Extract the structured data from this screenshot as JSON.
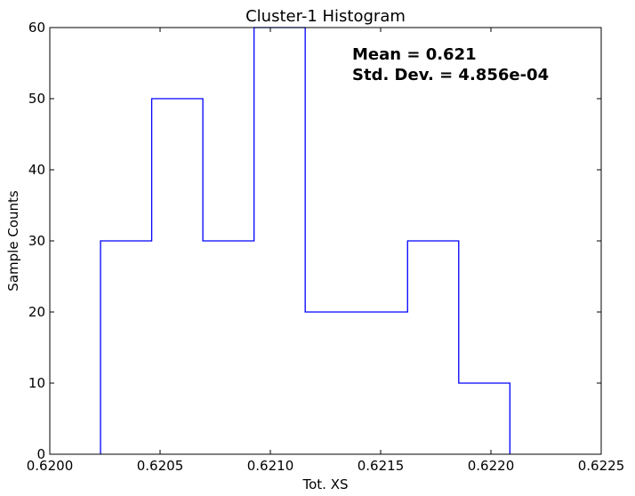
{
  "chart_data": {
    "type": "histogram",
    "title": "Cluster-1 Histogram",
    "xlabel": "Tot. XS",
    "ylabel": "Sample Counts",
    "xlim": [
      0.62,
      0.6225
    ],
    "ylim": [
      0,
      60
    ],
    "xticks": [
      0.62,
      0.6205,
      0.621,
      0.6215,
      0.622,
      0.6225
    ],
    "xtick_labels": [
      "0.6200",
      "0.6205",
      "0.6210",
      "0.6215",
      "0.6220",
      "0.6225"
    ],
    "yticks": [
      0,
      10,
      20,
      30,
      40,
      50,
      60
    ],
    "ytick_labels": [
      "0",
      "10",
      "20",
      "30",
      "40",
      "50",
      "60"
    ],
    "bin_edges": [
      0.62023,
      0.620462,
      0.620694,
      0.620926,
      0.621158,
      0.62139,
      0.621622,
      0.621854,
      0.622086
    ],
    "counts": [
      30,
      50,
      30,
      60,
      20,
      20,
      30,
      10
    ],
    "histtype": "step",
    "color": "#0000ff",
    "grid": false,
    "annotations": [
      {
        "text": "Mean = 0.621"
      },
      {
        "text": "Std. Dev. = 4.856e-04"
      }
    ]
  }
}
